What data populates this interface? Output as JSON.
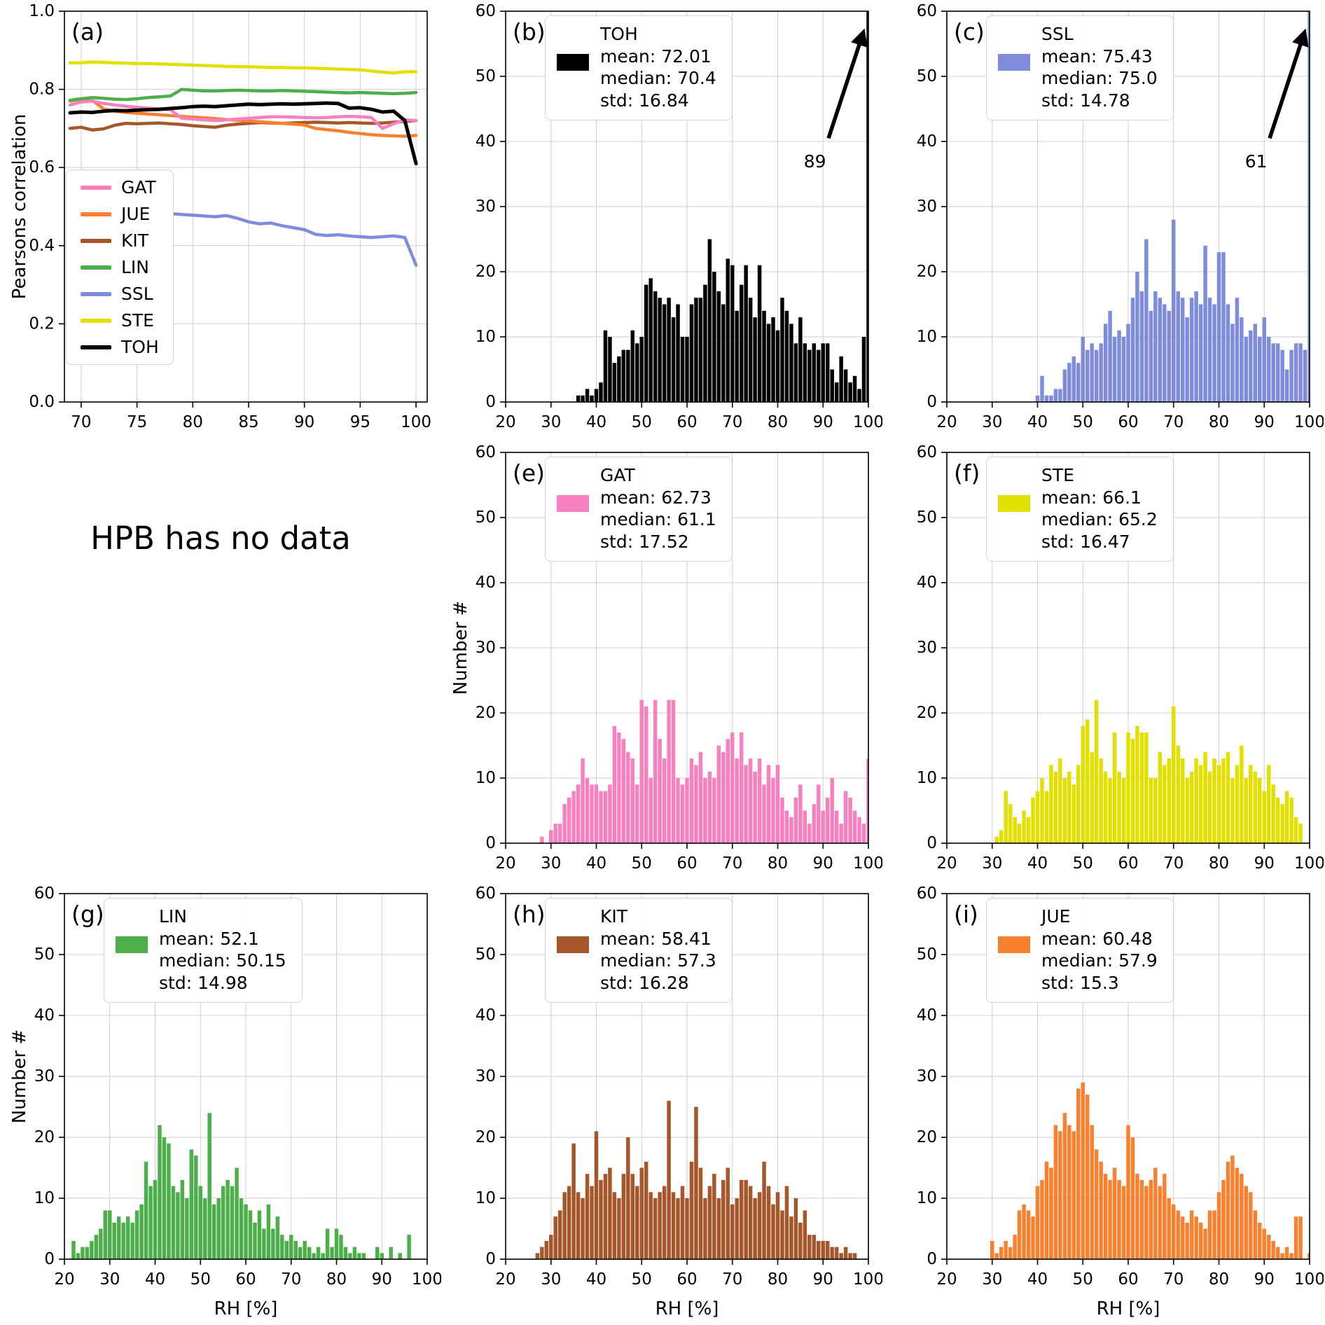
{
  "no_data_text": "HPB has no data",
  "chart_data": {
    "panel_a": {
      "type": "line",
      "label": "(a)",
      "ylabel": "Pearsons correlation",
      "xlim": [
        68.5,
        101
      ],
      "ylim": [
        0,
        1.0
      ],
      "xticks": [
        70,
        75,
        80,
        85,
        90,
        95,
        100
      ],
      "yticks": [
        0,
        0.2,
        0.4,
        0.6,
        0.8,
        1.0
      ],
      "legend_items": [
        {
          "label": "GAT",
          "color": "#f781bf"
        },
        {
          "label": "JUE",
          "color": "#f8802e"
        },
        {
          "label": "KIT",
          "color": "#a65628"
        },
        {
          "label": "LIN",
          "color": "#4daf4a"
        },
        {
          "label": "SSL",
          "color": "#7e8cdb"
        },
        {
          "label": "STE",
          "color": "#e2e000"
        },
        {
          "label": "TOH",
          "color": "#000000"
        }
      ],
      "x": [
        69,
        70,
        71,
        72,
        73,
        74,
        75,
        76,
        77,
        78,
        79,
        80,
        81,
        82,
        83,
        84,
        85,
        86,
        87,
        88,
        89,
        90,
        91,
        92,
        93,
        94,
        95,
        96,
        97,
        98,
        99,
        100
      ],
      "series": [
        {
          "name": "SSL",
          "color": "#7e8cdb",
          "y": [
            0.49,
            0.493,
            0.491,
            0.496,
            0.493,
            0.49,
            0.488,
            0.486,
            0.484,
            0.482,
            0.48,
            0.478,
            0.476,
            0.474,
            0.477,
            0.47,
            0.461,
            0.456,
            0.458,
            0.451,
            0.446,
            0.441,
            0.429,
            0.426,
            0.428,
            0.425,
            0.423,
            0.421,
            0.423,
            0.425,
            0.421,
            0.35
          ]
        },
        {
          "name": "KIT",
          "color": "#a65628",
          "y": [
            0.7,
            0.703,
            0.696,
            0.699,
            0.708,
            0.713,
            0.712,
            0.713,
            0.714,
            0.712,
            0.71,
            0.707,
            0.705,
            0.703,
            0.708,
            0.711,
            0.713,
            0.715,
            0.714,
            0.713,
            0.714,
            0.715,
            0.716,
            0.715,
            0.714,
            0.715,
            0.714,
            0.713,
            0.714,
            0.716,
            0.718,
            0.72
          ]
        },
        {
          "name": "JUE",
          "color": "#f8802e",
          "y": [
            0.77,
            0.775,
            0.772,
            0.75,
            0.744,
            0.741,
            0.739,
            0.737,
            0.735,
            0.733,
            0.731,
            0.729,
            0.727,
            0.725,
            0.723,
            0.721,
            0.719,
            0.717,
            0.715,
            0.713,
            0.711,
            0.709,
            0.7,
            0.697,
            0.694,
            0.69,
            0.687,
            0.684,
            0.682,
            0.681,
            0.68,
            0.682
          ]
        },
        {
          "name": "GAT",
          "color": "#f781bf",
          "y": [
            0.76,
            0.768,
            0.77,
            0.764,
            0.76,
            0.757,
            0.754,
            0.752,
            0.75,
            0.748,
            0.726,
            0.724,
            0.722,
            0.72,
            0.722,
            0.724,
            0.726,
            0.728,
            0.73,
            0.73,
            0.729,
            0.728,
            0.727,
            0.728,
            0.73,
            0.731,
            0.73,
            0.728,
            0.7,
            0.712,
            0.722,
            0.72
          ]
        },
        {
          "name": "LIN",
          "color": "#4daf4a",
          "y": [
            0.772,
            0.776,
            0.779,
            0.777,
            0.775,
            0.774,
            0.776,
            0.779,
            0.781,
            0.783,
            0.8,
            0.798,
            0.796,
            0.796,
            0.797,
            0.798,
            0.797,
            0.796,
            0.796,
            0.797,
            0.796,
            0.795,
            0.794,
            0.793,
            0.792,
            0.791,
            0.792,
            0.791,
            0.79,
            0.789,
            0.79,
            0.792
          ]
        },
        {
          "name": "STE",
          "color": "#e2e000",
          "y": [
            0.868,
            0.868,
            0.87,
            0.869,
            0.868,
            0.867,
            0.866,
            0.866,
            0.865,
            0.864,
            0.863,
            0.862,
            0.861,
            0.86,
            0.859,
            0.858,
            0.858,
            0.857,
            0.856,
            0.856,
            0.855,
            0.855,
            0.854,
            0.853,
            0.852,
            0.851,
            0.85,
            0.847,
            0.844,
            0.842,
            0.845,
            0.845
          ]
        },
        {
          "name": "TOH",
          "color": "#000000",
          "y": [
            0.74,
            0.742,
            0.741,
            0.744,
            0.746,
            0.745,
            0.747,
            0.748,
            0.749,
            0.751,
            0.753,
            0.756,
            0.757,
            0.756,
            0.758,
            0.76,
            0.762,
            0.761,
            0.762,
            0.763,
            0.762,
            0.763,
            0.764,
            0.765,
            0.764,
            0.752,
            0.753,
            0.749,
            0.742,
            0.744,
            0.72,
            0.61
          ]
        }
      ]
    },
    "hist_axes": {
      "xlim": [
        20,
        100
      ],
      "ylim": [
        0,
        60
      ],
      "xticks": [
        20,
        30,
        40,
        50,
        60,
        70,
        80,
        90,
        100
      ],
      "yticks": [
        0,
        10,
        20,
        30,
        40,
        50,
        60
      ],
      "xlabel": "RH [%]",
      "ylabel": "Number #"
    },
    "histograms": [
      {
        "id": "b",
        "type": "bar",
        "label": "(b)",
        "name": "TOH",
        "color": "#000000",
        "mean": 72.01,
        "median": 70.4,
        "std": 16.84,
        "mean_text": "mean: 72.01",
        "median_text": "median: 70.4",
        "std_text": "std: 16.84",
        "annotation": "89",
        "bin_start": 36,
        "bin_width": 1,
        "counts": [
          1,
          1,
          2,
          1,
          2,
          3,
          11,
          10,
          6,
          7,
          8,
          8,
          11,
          9,
          10,
          18,
          19,
          17,
          16,
          15,
          16,
          13,
          15,
          10,
          10,
          15,
          16,
          16,
          18,
          25,
          20,
          17,
          15,
          22,
          21,
          14,
          18,
          21,
          16,
          13,
          21,
          14,
          12,
          13,
          11,
          16,
          14,
          12,
          9,
          13,
          9,
          8,
          9,
          8,
          9,
          9,
          5,
          3,
          7,
          5,
          3,
          4,
          2,
          10,
          89
        ]
      },
      {
        "id": "c",
        "type": "bar",
        "label": "(c)",
        "name": "SSL",
        "color": "#7e8cdb",
        "mean": 75.43,
        "median": 75.0,
        "std": 14.78,
        "mean_text": "mean: 75.43",
        "median_text": "median: 75.0",
        "std_text": "std: 14.78",
        "annotation": "61",
        "bin_start": 40,
        "bin_width": 1,
        "counts": [
          1,
          4,
          1,
          1,
          2,
          2,
          5,
          6,
          7,
          6,
          10,
          8,
          9,
          8,
          9,
          12,
          14,
          10,
          11,
          10,
          12,
          16,
          20,
          17,
          25,
          14,
          17,
          16,
          15,
          14,
          28,
          17,
          16,
          13,
          16,
          17,
          15,
          24,
          16,
          15,
          23,
          23,
          15,
          12,
          16,
          13,
          10,
          11,
          12,
          10,
          13,
          10,
          9,
          9,
          8,
          5,
          8,
          9,
          9,
          8,
          61
        ]
      },
      {
        "id": "e",
        "type": "bar",
        "label": "(e)",
        "name": "GAT",
        "color": "#f781bf",
        "mean": 62.73,
        "median": 61.1,
        "std": 17.52,
        "mean_text": "mean: 62.73",
        "median_text": "median: 61.1",
        "std_text": "std: 17.52",
        "annotation": null,
        "bin_start": 28,
        "bin_width": 1,
        "counts": [
          1,
          0,
          2,
          3,
          3,
          6,
          7,
          8,
          9,
          13,
          10,
          9,
          9,
          8,
          8,
          9,
          18,
          17,
          16,
          14,
          13,
          9,
          22,
          21,
          10,
          22,
          16,
          13,
          22,
          22,
          10,
          9,
          10,
          13,
          12,
          14,
          10,
          11,
          10,
          15,
          14,
          16,
          17,
          13,
          17,
          12,
          13,
          11,
          13,
          9,
          12,
          10,
          12,
          7,
          5,
          4,
          7,
          9,
          5,
          3,
          6,
          9,
          5,
          7,
          10,
          5,
          3,
          8,
          7,
          5,
          4,
          3,
          13
        ]
      },
      {
        "id": "f",
        "type": "bar",
        "label": "(f)",
        "name": "STE",
        "color": "#e2e000",
        "mean": 66.1,
        "median": 65.2,
        "std": 16.47,
        "mean_text": "mean: 66.1",
        "median_text": "median: 65.2",
        "std_text": "std: 16.47",
        "annotation": null,
        "bin_start": 31,
        "bin_width": 1,
        "counts": [
          1,
          2,
          8,
          6,
          4,
          3,
          5,
          4,
          7,
          8,
          10,
          8,
          12,
          11,
          13,
          10,
          11,
          9,
          12,
          18,
          19,
          14,
          22,
          13,
          11,
          10,
          17,
          11,
          10,
          17,
          16,
          18,
          17,
          17,
          10,
          10,
          14,
          12,
          13,
          21,
          15,
          13,
          10,
          11,
          13,
          12,
          14,
          11,
          13,
          12,
          13,
          14,
          10,
          12,
          15,
          10,
          12,
          11,
          10,
          8,
          12,
          9,
          7,
          6,
          8,
          7,
          4,
          3
        ]
      },
      {
        "id": "g",
        "type": "bar",
        "label": "(g)",
        "name": "LIN",
        "color": "#4daf4a",
        "mean": 52.1,
        "median": 50.15,
        "std": 14.98,
        "mean_text": "mean: 52.1",
        "median_text": "median: 50.15",
        "std_text": "std: 14.98",
        "annotation": null,
        "bin_start": 22,
        "bin_width": 1,
        "counts": [
          3,
          1,
          2,
          2,
          3,
          4,
          5,
          8,
          8,
          6,
          7,
          6,
          7,
          6,
          8,
          9,
          16,
          12,
          13,
          22,
          20,
          19,
          12,
          11,
          13,
          10,
          18,
          17,
          12,
          10,
          24,
          9,
          10,
          12,
          13,
          12,
          15,
          10,
          9,
          8,
          6,
          8,
          5,
          9,
          5,
          7,
          4,
          3,
          4,
          3,
          2,
          3,
          2,
          1,
          2,
          1,
          5,
          2,
          5,
          4,
          2,
          1,
          2,
          1,
          1,
          0,
          0,
          2,
          1,
          0,
          2,
          0,
          1,
          0,
          4
        ]
      },
      {
        "id": "h",
        "type": "bar",
        "label": "(h)",
        "name": "KIT",
        "color": "#a65628",
        "mean": 58.41,
        "median": 57.3,
        "std": 16.28,
        "mean_text": "mean: 58.41",
        "median_text": "median: 57.3",
        "std_text": "std: 16.28",
        "annotation": null,
        "bin_start": 27,
        "bin_width": 1,
        "counts": [
          1,
          2,
          3,
          4,
          7,
          8,
          11,
          12,
          19,
          11,
          10,
          14,
          12,
          21,
          13,
          14,
          15,
          11,
          10,
          14,
          20,
          14,
          12,
          15,
          16,
          11,
          10,
          11,
          12,
          26,
          11,
          10,
          12,
          10,
          16,
          25,
          15,
          10,
          12,
          14,
          10,
          13,
          15,
          9,
          10,
          13,
          13,
          12,
          10,
          11,
          16,
          12,
          9,
          11,
          8,
          12,
          7,
          10,
          6,
          8,
          4,
          4,
          3,
          3,
          3,
          2,
          2,
          1,
          2,
          1,
          1
        ]
      },
      {
        "id": "i",
        "type": "bar",
        "label": "(i)",
        "name": "JUE",
        "color": "#f8802e",
        "mean": 60.48,
        "median": 57.9,
        "std": 15.3,
        "mean_text": "mean: 60.48",
        "median_text": "median: 57.9",
        "std_text": "std: 15.3",
        "annotation": null,
        "bin_start": 30,
        "bin_width": 1,
        "counts": [
          3,
          1,
          2,
          3,
          2,
          4,
          8,
          9,
          8,
          7,
          12,
          13,
          16,
          15,
          22,
          21,
          24,
          22,
          21,
          28,
          29,
          27,
          22,
          18,
          16,
          14,
          13,
          15,
          13,
          12,
          22,
          20,
          14,
          13,
          12,
          13,
          15,
          12,
          14,
          10,
          9,
          8,
          7,
          6,
          8,
          7,
          6,
          5,
          8,
          8,
          11,
          13,
          16,
          17,
          15,
          14,
          12,
          11,
          8,
          6,
          5,
          4,
          3,
          2,
          1,
          2,
          1,
          7,
          7,
          0,
          1
        ]
      }
    ]
  }
}
